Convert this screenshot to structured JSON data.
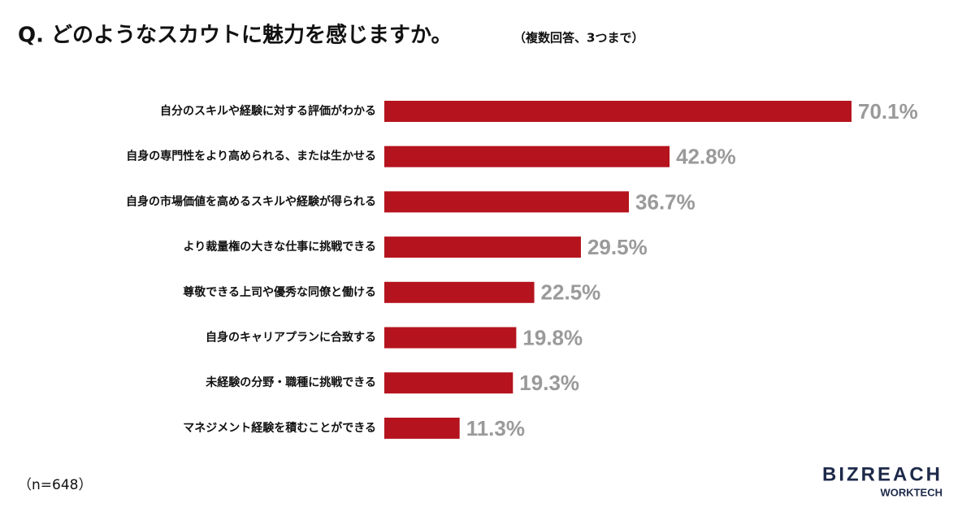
{
  "chart_data": {
    "type": "bar",
    "orientation": "horizontal",
    "title": "Q. どのようなスカウトに魅力を感じますか。",
    "subtitle": "（複数回答、3つまで）",
    "categories": [
      "自分のスキルや経験に対する評価がわかる",
      "自身の専門性をより高められる、または生かせる",
      "自身の市場価値を高めるスキルや経験が得られる",
      "より裁量権の大きな仕事に挑戦できる",
      "尊敬できる上司や優秀な同僚と働ける",
      "自身のキャリアプランに合致する",
      "未経験の分野・職種に挑戦できる",
      "マネジメント経験を積むことができる"
    ],
    "values": [
      70.1,
      42.8,
      36.7,
      29.5,
      22.5,
      19.8,
      19.3,
      11.3
    ],
    "value_labels": [
      "70.1%",
      "42.8%",
      "36.7%",
      "29.5%",
      "22.5%",
      "19.8%",
      "19.3%",
      "11.3%"
    ],
    "color": "#b5141e",
    "note": "（n=648）"
  },
  "logo": {
    "brand": "BIZREACH",
    "product": "WORKTECH"
  }
}
